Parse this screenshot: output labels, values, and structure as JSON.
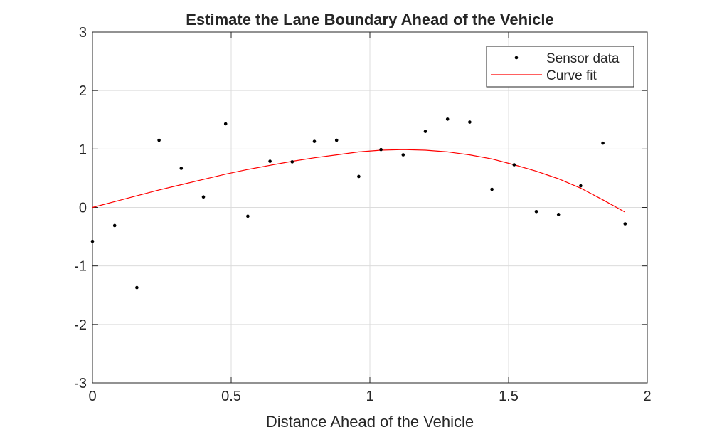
{
  "chart_data": {
    "type": "scatter",
    "title": "Estimate the Lane Boundary Ahead of the Vehicle",
    "xlabel": "Distance Ahead of the Vehicle",
    "ylabel": "",
    "xlim": [
      0,
      2
    ],
    "ylim": [
      -3,
      3
    ],
    "xticks": [
      "0",
      "0.5",
      "1",
      "1.5",
      "2"
    ],
    "yticks": [
      "-3",
      "-2",
      "-1",
      "0",
      "1",
      "2",
      "3"
    ],
    "grid": true,
    "legend": {
      "placement": "top-right",
      "entries": [
        "Sensor data",
        "Curve fit"
      ]
    },
    "series": [
      {
        "name": "Sensor data",
        "kind": "points",
        "color": "#000000",
        "x": [
          0,
          0.08,
          0.16,
          0.24,
          0.32,
          0.4,
          0.48,
          0.56,
          0.64,
          0.72,
          0.8,
          0.88,
          0.96,
          1.04,
          1.12,
          1.2,
          1.28,
          1.36,
          1.44,
          1.52,
          1.6,
          1.68,
          1.76,
          1.84,
          1.92
        ],
        "y": [
          -0.58,
          -0.31,
          -1.37,
          1.15,
          0.67,
          0.18,
          1.43,
          -0.15,
          0.79,
          0.78,
          1.13,
          1.15,
          0.53,
          0.99,
          0.9,
          1.3,
          1.51,
          1.46,
          0.31,
          0.73,
          -0.07,
          -0.12,
          0.37,
          1.1,
          -0.28
        ]
      },
      {
        "name": "Curve fit",
        "kind": "line",
        "color": "#ff0000",
        "x": [
          0,
          0.08,
          0.16,
          0.24,
          0.32,
          0.4,
          0.48,
          0.56,
          0.64,
          0.72,
          0.8,
          0.88,
          0.96,
          1.04,
          1.12,
          1.2,
          1.28,
          1.36,
          1.44,
          1.52,
          1.6,
          1.68,
          1.76,
          1.84,
          1.92
        ],
        "y": [
          0.0,
          0.1,
          0.2,
          0.3,
          0.39,
          0.48,
          0.57,
          0.65,
          0.72,
          0.79,
          0.85,
          0.9,
          0.95,
          0.98,
          0.99,
          0.98,
          0.95,
          0.9,
          0.83,
          0.73,
          0.62,
          0.49,
          0.33,
          0.13,
          -0.08
        ]
      }
    ]
  }
}
